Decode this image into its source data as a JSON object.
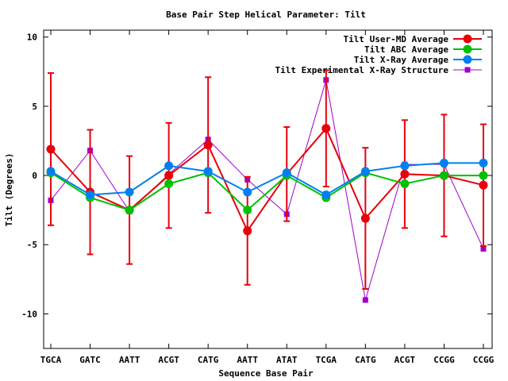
{
  "chart_data": {
    "type": "line",
    "title": "Base Pair Step Helical Parameter: Tilt",
    "xlabel": "Sequence Base Pair",
    "ylabel": "Tilt (Degrees)",
    "categories": [
      "TGCA",
      "GATC",
      "AATT",
      "ACGT",
      "CATG",
      "AATT",
      "ATAT",
      "TCGA",
      "CATG",
      "ACGT",
      "CCGG",
      "CCGG"
    ],
    "ylim": [
      -12.5,
      10.5
    ],
    "yticks": [
      -10,
      -5,
      0,
      5,
      10
    ],
    "legend_position": "top-right",
    "series": [
      {
        "name": "Tilt User-MD Average",
        "color": "#e8000b",
        "marker": "circle",
        "values": [
          1.9,
          -1.2,
          -2.5,
          0.0,
          2.2,
          -4.0,
          0.1,
          3.4,
          -3.1,
          0.1,
          0.0,
          -0.7
        ],
        "error": [
          5.5,
          4.5,
          3.9,
          3.8,
          4.9,
          3.9,
          3.4,
          4.2,
          5.1,
          3.9,
          4.4,
          4.4
        ]
      },
      {
        "name": "Tilt ABC Average",
        "color": "#00c000",
        "marker": "circle",
        "values": [
          0.2,
          -1.6,
          -2.5,
          -0.6,
          0.2,
          -2.5,
          0.0,
          -1.6,
          0.2,
          -0.6,
          0.0,
          0.0
        ]
      },
      {
        "name": "Tilt X-Ray Average",
        "color": "#0080f0",
        "marker": "circle",
        "values": [
          0.3,
          -1.4,
          -1.2,
          0.7,
          0.3,
          -1.2,
          0.2,
          -1.4,
          0.3,
          0.7,
          0.9,
          0.9
        ]
      },
      {
        "name": "Tilt Experimental X-Ray Structure",
        "color": "#a000d0",
        "marker": "square",
        "values": [
          -1.8,
          1.8,
          -2.6,
          0.1,
          2.6,
          -0.3,
          -2.8,
          6.9,
          -9.0,
          0.8,
          0.8,
          -5.3
        ]
      }
    ]
  }
}
